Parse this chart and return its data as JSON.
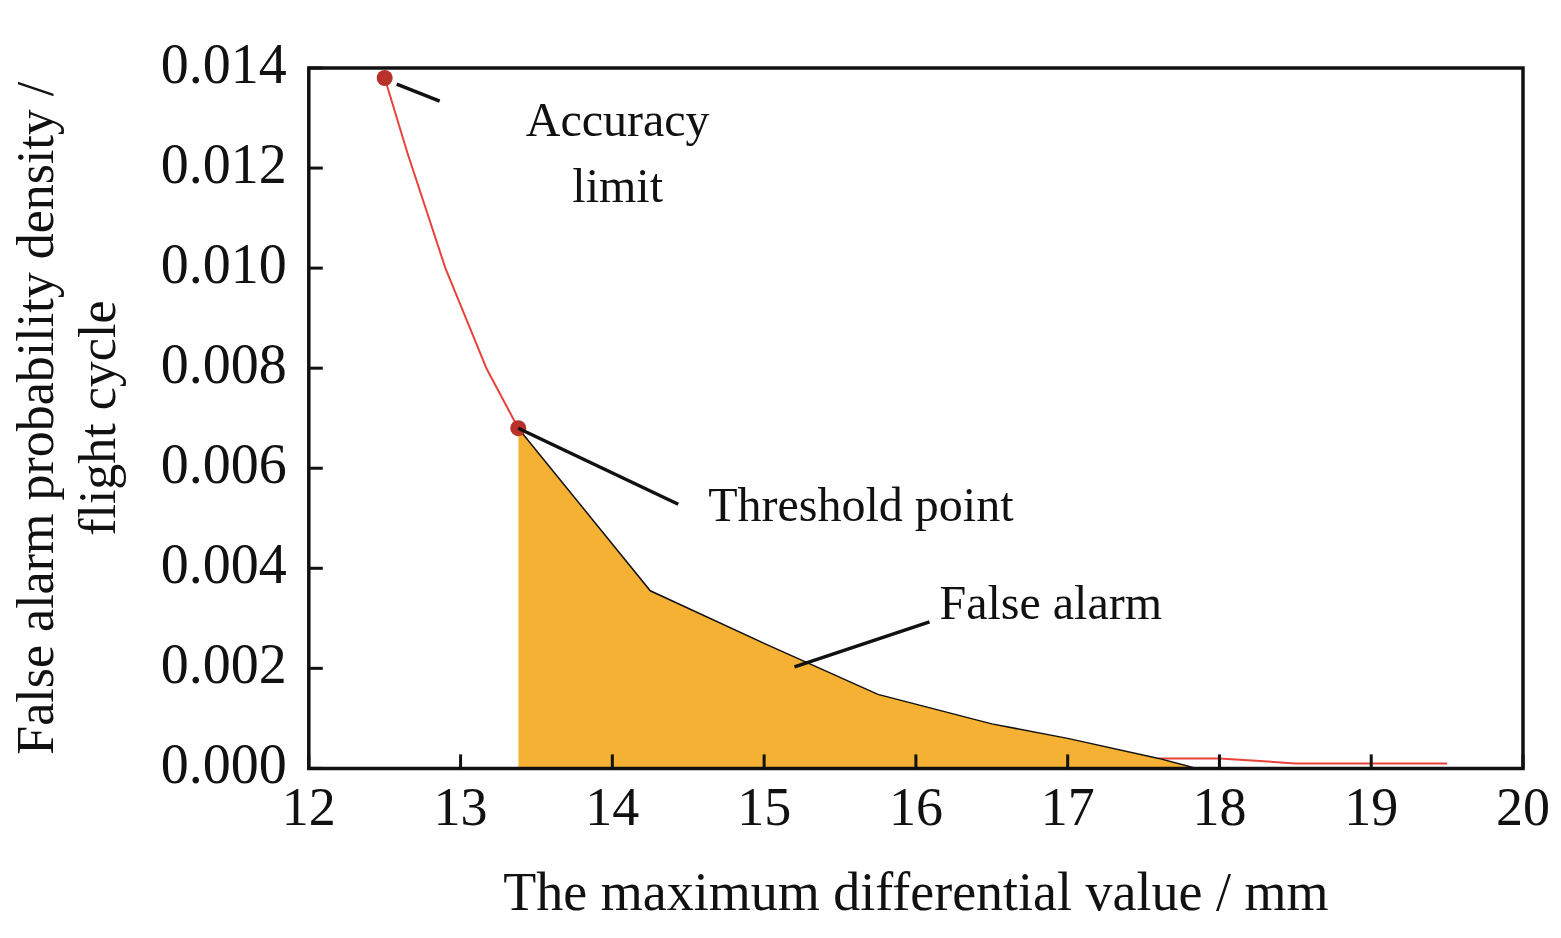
{
  "chart_data": {
    "type": "line",
    "xlabel": "The maximum differential value / mm",
    "ylabel": "False alarm probability density / flight cycle",
    "xlim": [
      12,
      20
    ],
    "xticks": [
      12,
      13,
      14,
      15,
      16,
      17,
      18,
      19,
      20
    ],
    "ylim": [
      0,
      0.014
    ],
    "yticks": [
      {
        "value": 0,
        "label": "0.000"
      },
      {
        "value": 0.002,
        "label": "0.002"
      },
      {
        "value": 0.004,
        "label": "0.004"
      },
      {
        "value": 0.006,
        "label": "0.006"
      },
      {
        "value": 0.008,
        "label": "0.008"
      },
      {
        "value": 0.01,
        "label": "0.010"
      },
      {
        "value": 0.012,
        "label": "0.012"
      },
      {
        "value": 0.014,
        "label": "0.014"
      }
    ],
    "series": [
      {
        "type": "line",
        "color": "#e8423a",
        "marker": "none",
        "x": [
          12.5,
          12.65,
          12.9,
          13.17,
          13.38,
          14.25,
          15,
          15.75,
          16.5,
          17,
          17.6,
          18,
          18.5,
          19,
          19.5
        ],
        "values": [
          0.0138,
          0.0123,
          0.01,
          0.008,
          0.0068,
          null,
          null,
          null,
          null,
          null,
          0.0002,
          0.0002,
          0.0001,
          0.0001,
          0.0001
        ]
      },
      {
        "type": "area",
        "color": "#f5b133",
        "x": [
          13.38,
          14.25,
          15,
          15.75,
          16.5,
          17,
          17.6,
          17.85
        ],
        "values": [
          0.0068,
          0.00355,
          0.0025,
          0.00148,
          0.00089,
          0.0006,
          0.0002,
          0
        ]
      },
      {
        "type": "scatter",
        "color": "#b8312b",
        "marker": "circle",
        "x": [
          12.5,
          13.38
        ],
        "values": [
          0.0138,
          0.0068
        ]
      }
    ],
    "annotations": [
      {
        "text": "Accuracy limit",
        "x": 12.5,
        "y": 0.0138
      },
      {
        "text": "Threshold point",
        "x": 13.38,
        "y": 0.0068
      },
      "False alarm"
    ]
  }
}
